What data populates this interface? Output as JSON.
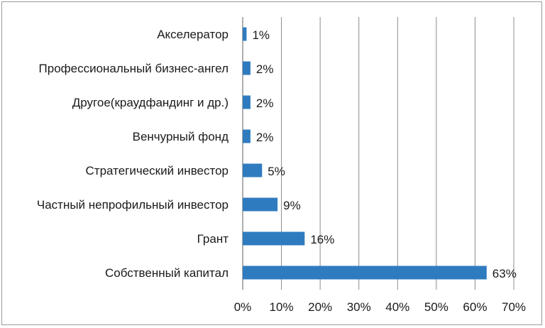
{
  "chart_data": {
    "type": "bar",
    "orientation": "horizontal",
    "title": "",
    "xlabel": "",
    "ylabel": "",
    "categories": [
      "Акселератор",
      "Профессиональный бизнес-ангел",
      "Другое(краудфандинг и др.)",
      "Венчурный фонд",
      "Стратегический инвестор",
      "Частный непрофильный инвестор",
      "Грант",
      "Собственный капитал"
    ],
    "values": [
      1,
      2,
      2,
      2,
      5,
      9,
      16,
      63
    ],
    "data_labels": [
      "1%",
      "2%",
      "2%",
      "2%",
      "5%",
      "9%",
      "16%",
      "63%"
    ],
    "xlim": [
      0,
      70
    ],
    "x_ticks": [
      0,
      10,
      20,
      30,
      40,
      50,
      60,
      70
    ],
    "x_tick_labels": [
      "0%",
      "10%",
      "20%",
      "30%",
      "40%",
      "50%",
      "60%",
      "70%"
    ],
    "grid": "vertical",
    "legend": "none",
    "bar_color": "#2f7bbf",
    "grid_color": "#8c8c8c"
  }
}
